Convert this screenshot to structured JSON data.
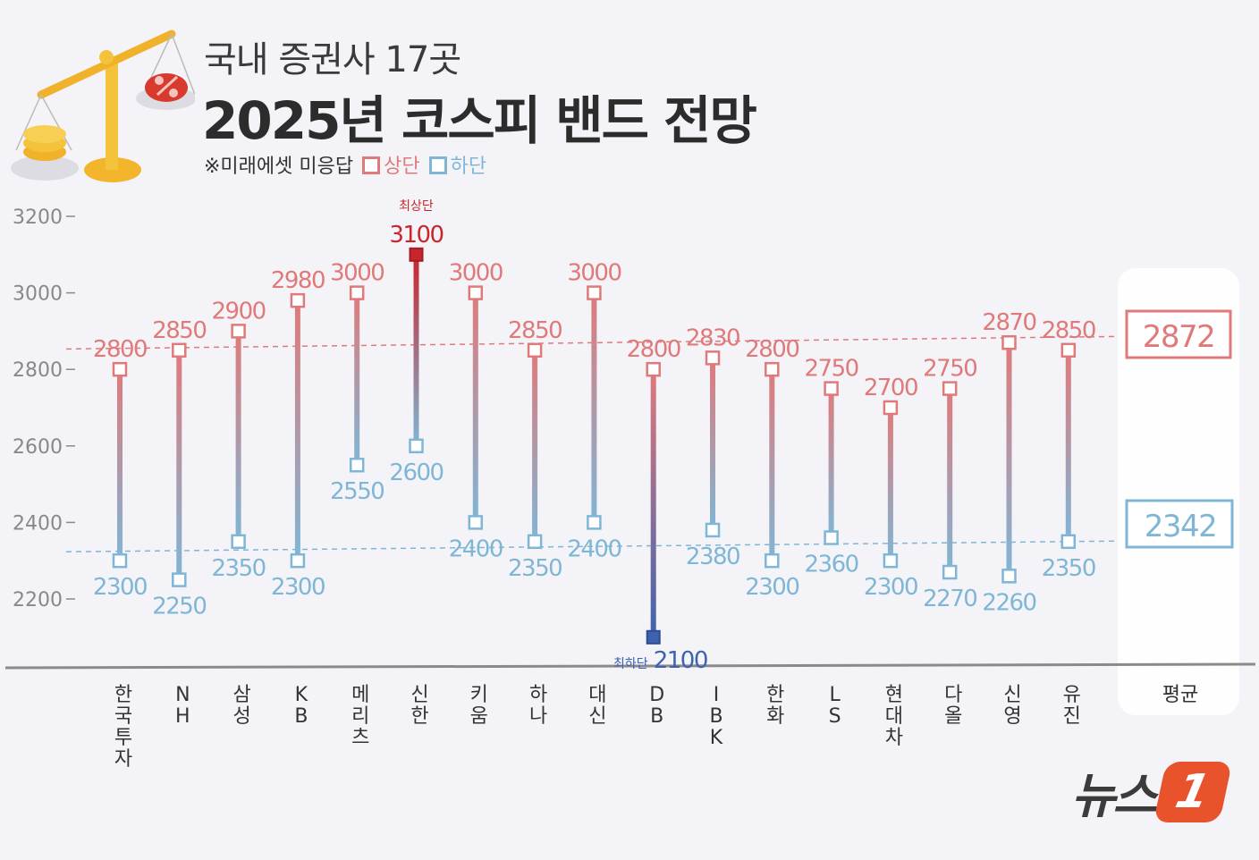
{
  "header": {
    "subtitle": "국내 증권사 17곳",
    "title": "2025년 코스피 밴드 전망",
    "note": "※미래에셋 미응답",
    "legend_upper": "상단",
    "legend_lower": "하단"
  },
  "annotations": {
    "highest_label": "최상단",
    "lowest_label": "최하단"
  },
  "colors": {
    "upper": "#e07a7a",
    "lower": "#7fb6d6",
    "highest": "#c8262d",
    "lowest": "#3d63b0",
    "axis": "#888888"
  },
  "logo": {
    "text": "뉴스",
    "badge": "1"
  },
  "chart_data": {
    "type": "range",
    "y_ticks": [
      3200,
      3000,
      2800,
      2600,
      2400,
      2200
    ],
    "ylim": [
      2200,
      3200
    ],
    "categories": [
      "한국투자",
      "NH",
      "삼성",
      "KB",
      "메리츠",
      "신한",
      "키움",
      "하나",
      "대신",
      "DB",
      "IBK",
      "한화",
      "LS",
      "현대차",
      "다올",
      "신영",
      "유진"
    ],
    "series": [
      {
        "name": "상단",
        "values": [
          2800,
          2850,
          2900,
          2980,
          3000,
          3100,
          3000,
          2850,
          3000,
          2800,
          2830,
          2800,
          2750,
          2700,
          2750,
          2870,
          2850
        ]
      },
      {
        "name": "하단",
        "values": [
          2300,
          2250,
          2350,
          2300,
          2550,
          2600,
          2400,
          2350,
          2400,
          2100,
          2380,
          2300,
          2360,
          2300,
          2270,
          2260,
          2350
        ]
      }
    ],
    "average": {
      "label": "평균",
      "upper": 2872,
      "lower": 2342
    },
    "highest_index": 5,
    "lowest_index": 9
  }
}
